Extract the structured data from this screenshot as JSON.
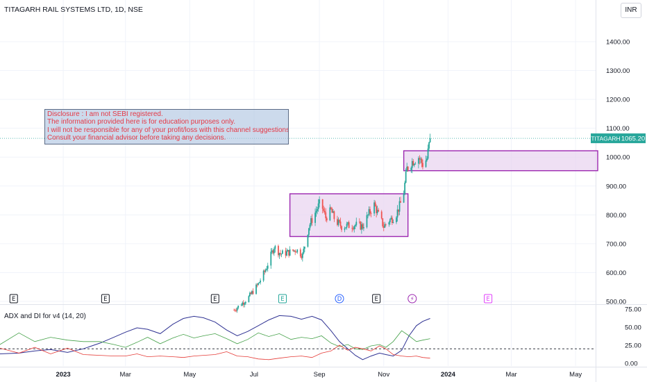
{
  "header": {
    "title": "TITAGARH RAIL SYSTEMS LTD, 1D, NSE",
    "currency": "INR"
  },
  "price_label": {
    "ticker": "TITAGARH",
    "value": "1065.20"
  },
  "disclaimer": {
    "lines": [
      "Disclosure : I am not SEBI registered.",
      "The information provided here is for education purposes only.",
      "I will not be responsible for any of your profit/loss with this channel suggestions.",
      "Consult your financial advisor before taking any decisions."
    ]
  },
  "indicator": {
    "label": "ADX and DI for v4 (14, 20)"
  },
  "colors": {
    "up": "#26a69a",
    "down": "#ef5350",
    "box_fill": "#e9d5f0",
    "box_stroke": "#9c27b0",
    "adx": "#2e3192",
    "di_plus": "#43a047",
    "di_minus": "#e53935",
    "price_line": "#26a69a"
  },
  "events": [
    {
      "type": "E",
      "date": "2022-11-15",
      "color": "#131722"
    },
    {
      "type": "E",
      "date": "2023-02-10",
      "color": "#131722"
    },
    {
      "type": "E",
      "date": "2023-05-25",
      "color": "#131722"
    },
    {
      "type": "E",
      "date": "2023-07-28",
      "color": "#26a69a"
    },
    {
      "type": "D",
      "date": "2023-09-20",
      "color": "#2962ff"
    },
    {
      "type": "E",
      "date": "2023-10-25",
      "color": "#131722"
    },
    {
      "type": "⚡",
      "date": "2023-11-28",
      "color": "#9c27b0"
    },
    {
      "type": "E",
      "date": "2024-02-08",
      "color": "#e040fb"
    }
  ],
  "chart_data": [
    {
      "type": "candlestick",
      "title": "TITAGARH RAIL SYSTEMS LTD, 1D, NSE",
      "y_unit": "INR",
      "ylim": [
        470,
        1480
      ],
      "yticks": [
        500,
        600,
        700,
        800,
        900,
        1000,
        1100,
        1200,
        1300,
        1400
      ],
      "ytick_labels": [
        "500.00",
        "600.00",
        "700.00",
        "800.00",
        "900.00",
        "1000.00",
        "1100.00",
        "1200.00",
        "1300.00",
        "1400.00"
      ],
      "xlim": [
        "2022-11-02",
        "2024-05-20"
      ],
      "xticks": [
        "2023-01-01",
        "2023-03-01",
        "2023-05-01",
        "2023-07-01",
        "2023-09-01",
        "2023-11-01",
        "2024-01-01",
        "2024-03-01",
        "2024-05-01"
      ],
      "xtick_labels": [
        "2023",
        "Mar",
        "May",
        "Jul",
        "Sep",
        "Nov",
        "2024",
        "Mar",
        "May"
      ],
      "last_price": 1065.2,
      "grid": true,
      "anchors": [
        [
          "2023-06-12",
          470
        ],
        [
          "2023-06-25",
          510
        ],
        [
          "2023-07-05",
          560
        ],
        [
          "2023-07-12",
          610
        ],
        [
          "2023-07-20",
          690
        ],
        [
          "2023-07-26",
          665
        ],
        [
          "2023-08-03",
          670
        ],
        [
          "2023-08-10",
          680
        ],
        [
          "2023-08-16",
          660
        ],
        [
          "2023-08-22",
          760
        ],
        [
          "2023-08-27",
          800
        ],
        [
          "2023-09-02",
          845
        ],
        [
          "2023-09-07",
          790
        ],
        [
          "2023-09-12",
          815
        ],
        [
          "2023-09-16",
          780
        ],
        [
          "2023-09-22",
          760
        ],
        [
          "2023-10-05",
          765
        ],
        [
          "2023-10-12",
          760
        ],
        [
          "2023-10-18",
          805
        ],
        [
          "2023-10-23",
          835
        ],
        [
          "2023-10-27",
          800
        ],
        [
          "2023-11-01",
          760
        ],
        [
          "2023-11-06",
          780
        ],
        [
          "2023-11-12",
          795
        ],
        [
          "2023-11-17",
          840
        ],
        [
          "2023-11-20",
          880
        ],
        [
          "2023-11-23",
          960
        ],
        [
          "2023-11-28",
          985
        ],
        [
          "2023-12-04",
          1000
        ],
        [
          "2023-12-08",
          975
        ],
        [
          "2023-12-12",
          995
        ],
        [
          "2023-12-15",
          1065.2
        ]
      ],
      "zones": [
        {
          "x0": "2023-08-04",
          "x1": "2023-11-24",
          "y0": 725,
          "y1": 873
        },
        {
          "x0": "2023-11-20",
          "x1": "2024-05-22",
          "y0": 953,
          "y1": 1022
        }
      ]
    },
    {
      "type": "line",
      "title": "ADX and DI for v4 (14, 20)",
      "ylim": [
        0,
        75
      ],
      "yticks": [
        0,
        25,
        50,
        75
      ],
      "ytick_labels": [
        "0.00",
        "25.00",
        "50.00",
        "75.00"
      ],
      "threshold": 20,
      "series": [
        {
          "name": "ADX",
          "color": "#2e3192",
          "points": [
            [
              "2022-11-02",
              13
            ],
            [
              "2022-11-20",
              14
            ],
            [
              "2022-12-05",
              17
            ],
            [
              "2022-12-20",
              19
            ],
            [
              "2023-01-05",
              15
            ],
            [
              "2023-01-20",
              20
            ],
            [
              "2023-02-05",
              28
            ],
            [
              "2023-02-18",
              36
            ],
            [
              "2023-03-01",
              43
            ],
            [
              "2023-03-12",
              49
            ],
            [
              "2023-03-22",
              47
            ],
            [
              "2023-04-03",
              41
            ],
            [
              "2023-04-15",
              54
            ],
            [
              "2023-04-25",
              62
            ],
            [
              "2023-05-05",
              65
            ],
            [
              "2023-05-14",
              63
            ],
            [
              "2023-05-25",
              57
            ],
            [
              "2023-06-05",
              46
            ],
            [
              "2023-06-15",
              38
            ],
            [
              "2023-06-25",
              44
            ],
            [
              "2023-07-05",
              52
            ],
            [
              "2023-07-15",
              60
            ],
            [
              "2023-07-25",
              66
            ],
            [
              "2023-08-05",
              65
            ],
            [
              "2023-08-15",
              61
            ],
            [
              "2023-08-25",
              65
            ],
            [
              "2023-09-03",
              60
            ],
            [
              "2023-09-12",
              45
            ],
            [
              "2023-09-20",
              30
            ],
            [
              "2023-09-28",
              20
            ],
            [
              "2023-10-05",
              11
            ],
            [
              "2023-10-12",
              5
            ],
            [
              "2023-10-20",
              10
            ],
            [
              "2023-10-28",
              14
            ],
            [
              "2023-11-03",
              12
            ],
            [
              "2023-11-10",
              10
            ],
            [
              "2023-11-18",
              18
            ],
            [
              "2023-11-25",
              38
            ],
            [
              "2023-12-02",
              52
            ],
            [
              "2023-12-08",
              58
            ],
            [
              "2023-12-15",
              62
            ]
          ]
        },
        {
          "name": "DI+",
          "color": "#43a047",
          "points": [
            [
              "2022-11-02",
              26
            ],
            [
              "2022-11-20",
              42
            ],
            [
              "2022-12-05",
              30
            ],
            [
              "2022-12-20",
              36
            ],
            [
              "2023-01-05",
              32
            ],
            [
              "2023-01-20",
              30
            ],
            [
              "2023-02-05",
              30
            ],
            [
              "2023-02-18",
              26
            ],
            [
              "2023-03-01",
              22
            ],
            [
              "2023-03-12",
              29
            ],
            [
              "2023-03-22",
              36
            ],
            [
              "2023-04-03",
              27
            ],
            [
              "2023-04-15",
              35
            ],
            [
              "2023-04-25",
              40
            ],
            [
              "2023-05-05",
              35
            ],
            [
              "2023-05-14",
              38
            ],
            [
              "2023-05-25",
              41
            ],
            [
              "2023-06-05",
              34
            ],
            [
              "2023-06-15",
              27
            ],
            [
              "2023-06-25",
              33
            ],
            [
              "2023-07-05",
              42
            ],
            [
              "2023-07-15",
              37
            ],
            [
              "2023-07-25",
              41
            ],
            [
              "2023-08-05",
              33
            ],
            [
              "2023-08-15",
              36
            ],
            [
              "2023-08-25",
              34
            ],
            [
              "2023-09-03",
              38
            ],
            [
              "2023-09-12",
              28
            ],
            [
              "2023-09-20",
              23
            ],
            [
              "2023-09-28",
              26
            ],
            [
              "2023-10-05",
              20
            ],
            [
              "2023-10-12",
              19
            ],
            [
              "2023-10-20",
              24
            ],
            [
              "2023-10-28",
              26
            ],
            [
              "2023-11-03",
              22
            ],
            [
              "2023-11-10",
              30
            ],
            [
              "2023-11-18",
              45
            ],
            [
              "2023-11-25",
              38
            ],
            [
              "2023-12-02",
              30
            ],
            [
              "2023-12-08",
              32
            ],
            [
              "2023-12-15",
              34
            ]
          ]
        },
        {
          "name": "DI-",
          "color": "#e53935",
          "points": [
            [
              "2022-11-02",
              21
            ],
            [
              "2022-11-20",
              14
            ],
            [
              "2022-12-05",
              22
            ],
            [
              "2022-12-20",
              13
            ],
            [
              "2023-01-05",
              21
            ],
            [
              "2023-01-20",
              12
            ],
            [
              "2023-02-05",
              11
            ],
            [
              "2023-02-18",
              10
            ],
            [
              "2023-03-01",
              10
            ],
            [
              "2023-03-12",
              13
            ],
            [
              "2023-03-22",
              9
            ],
            [
              "2023-04-03",
              10
            ],
            [
              "2023-04-15",
              9
            ],
            [
              "2023-04-25",
              8
            ],
            [
              "2023-05-05",
              10
            ],
            [
              "2023-05-14",
              11
            ],
            [
              "2023-05-25",
              12
            ],
            [
              "2023-06-05",
              16
            ],
            [
              "2023-06-15",
              10
            ],
            [
              "2023-06-25",
              9
            ],
            [
              "2023-07-05",
              6
            ],
            [
              "2023-07-15",
              5
            ],
            [
              "2023-07-25",
              7
            ],
            [
              "2023-08-05",
              9
            ],
            [
              "2023-08-15",
              10
            ],
            [
              "2023-08-25",
              8
            ],
            [
              "2023-09-03",
              14
            ],
            [
              "2023-09-12",
              17
            ],
            [
              "2023-09-20",
              25
            ],
            [
              "2023-09-28",
              18
            ],
            [
              "2023-10-05",
              22
            ],
            [
              "2023-10-12",
              20
            ],
            [
              "2023-10-20",
              17
            ],
            [
              "2023-10-28",
              24
            ],
            [
              "2023-11-03",
              20
            ],
            [
              "2023-11-10",
              12
            ],
            [
              "2023-11-18",
              10
            ],
            [
              "2023-11-25",
              9
            ],
            [
              "2023-12-02",
              10
            ],
            [
              "2023-12-08",
              8
            ],
            [
              "2023-12-15",
              7
            ]
          ]
        }
      ]
    }
  ]
}
